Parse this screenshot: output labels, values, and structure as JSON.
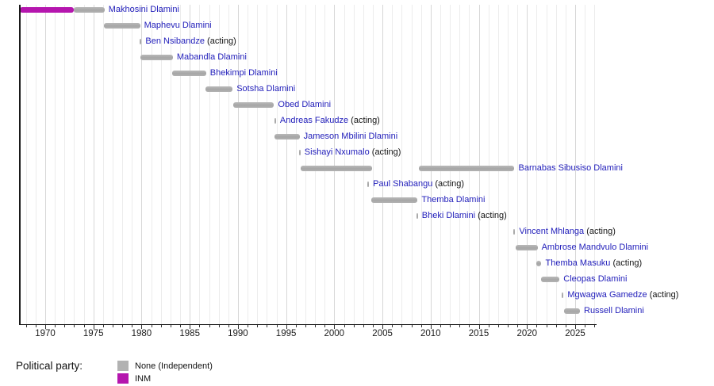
{
  "chart_data": {
    "type": "timeline",
    "description": "Term timeline of prime ministers, colored by political party",
    "axis": {
      "orientation": "horizontal-bottom",
      "start_year": 1967.35,
      "end_year": 2027.2,
      "minor_tick_interval": 1,
      "major_tick_interval": 5,
      "major_tick_labels": [
        "1970",
        "1975",
        "1980",
        "1985",
        "1990",
        "1995",
        "2000",
        "2005",
        "2010",
        "2015",
        "2020",
        "2025"
      ],
      "gridlines": "yearly"
    },
    "legend": {
      "title": "Political party:",
      "entries": [
        {
          "id": "none",
          "label": "None (Independent)",
          "color": "#b2b2b2"
        },
        {
          "id": "inm",
          "label": "INM",
          "color": "#b516ae"
        }
      ]
    },
    "rows": [
      {
        "label": "Makhosini Dlamini",
        "acting": false,
        "bars": [
          {
            "start": 1967.35,
            "end": 1973.0,
            "party": "inm"
          },
          {
            "start": 1973.0,
            "end": 1976.15,
            "party": "none"
          }
        ]
      },
      {
        "label": "Maphevu Dlamini",
        "acting": false,
        "bars": [
          {
            "start": 1976.05,
            "end": 1979.85,
            "party": "none"
          }
        ]
      },
      {
        "label": "Ben Nsibandze",
        "acting": true,
        "bars": [
          {
            "start": 1979.8,
            "end": 1980.0,
            "party": "none"
          }
        ]
      },
      {
        "label": "Mabandla Dlamini",
        "acting": false,
        "bars": [
          {
            "start": 1979.9,
            "end": 1983.25,
            "party": "none"
          }
        ]
      },
      {
        "label": "Bhekimpi Dlamini",
        "acting": false,
        "bars": [
          {
            "start": 1983.15,
            "end": 1986.7,
            "party": "none"
          }
        ]
      },
      {
        "label": "Sotsha Dlamini",
        "acting": false,
        "bars": [
          {
            "start": 1986.6,
            "end": 1989.45,
            "party": "none"
          }
        ]
      },
      {
        "label": "Obed Dlamini",
        "acting": false,
        "bars": [
          {
            "start": 1989.5,
            "end": 1993.75,
            "party": "none"
          }
        ]
      },
      {
        "label": "Andreas Fakudze",
        "acting": true,
        "bars": [
          {
            "start": 1993.77,
            "end": 1993.95,
            "party": "none"
          }
        ]
      },
      {
        "label": "Jameson Mbilini Dlamini",
        "acting": false,
        "bars": [
          {
            "start": 1993.8,
            "end": 1996.4,
            "party": "none"
          }
        ]
      },
      {
        "label": "Sishayi Nxumalo",
        "acting": true,
        "bars": [
          {
            "start": 1996.32,
            "end": 1996.5,
            "party": "none"
          }
        ]
      },
      {
        "label": "Barnabas Sibusiso Dlamini",
        "acting": false,
        "bars": [
          {
            "start": 1996.55,
            "end": 2003.95,
            "party": "none"
          },
          {
            "start": 2008.75,
            "end": 2018.7,
            "party": "none"
          }
        ]
      },
      {
        "label": "Paul Shabangu",
        "acting": true,
        "bars": [
          {
            "start": 2003.4,
            "end": 2003.6,
            "party": "none"
          }
        ]
      },
      {
        "label": "Themba Dlamini",
        "acting": false,
        "bars": [
          {
            "start": 2003.85,
            "end": 2008.65,
            "party": "none"
          }
        ]
      },
      {
        "label": "Bheki Dlamini",
        "acting": true,
        "bars": [
          {
            "start": 2008.5,
            "end": 2008.68,
            "party": "none"
          }
        ]
      },
      {
        "label": "Vincent Mhlanga",
        "acting": true,
        "bars": [
          {
            "start": 2018.6,
            "end": 2018.78,
            "party": "none"
          }
        ]
      },
      {
        "label": "Ambrose Mandvulo Dlamini",
        "acting": false,
        "bars": [
          {
            "start": 2018.85,
            "end": 2021.1,
            "party": "none"
          }
        ]
      },
      {
        "label": "Themba Masuku",
        "acting": true,
        "bars": [
          {
            "start": 2020.98,
            "end": 2021.5,
            "party": "none"
          }
        ]
      },
      {
        "label": "Cleopas Dlamini",
        "acting": false,
        "bars": [
          {
            "start": 2021.45,
            "end": 2023.38,
            "party": "none"
          }
        ]
      },
      {
        "label": "Mgwagwa Gamedze",
        "acting": true,
        "bars": [
          {
            "start": 2023.6,
            "end": 2023.8,
            "party": "none"
          }
        ]
      },
      {
        "label": "Russell Dlamini",
        "acting": false,
        "bars": [
          {
            "start": 2023.85,
            "end": 2025.5,
            "party": "none"
          }
        ]
      }
    ],
    "acting_suffix": "(acting)"
  }
}
